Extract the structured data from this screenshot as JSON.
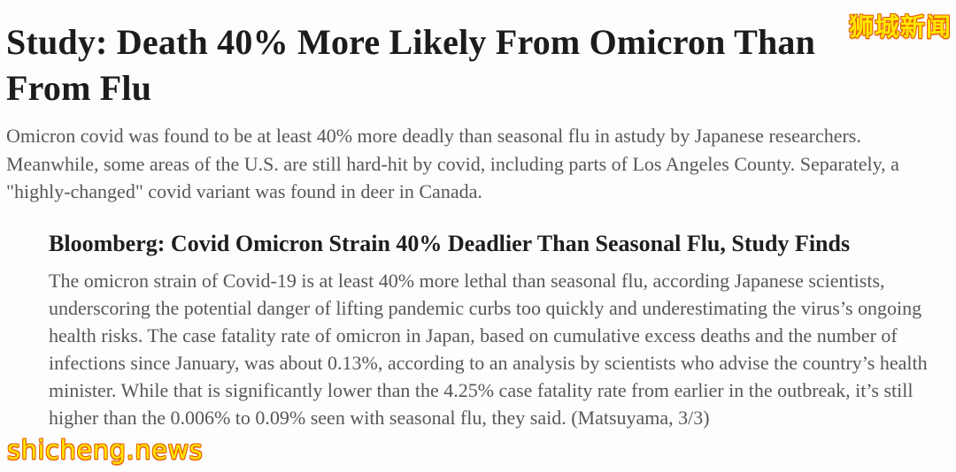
{
  "article": {
    "title": "Study: Death 40% More Likely From Omicron Than From Flu",
    "lead": "Omicron covid was found to be at least 40% more deadly than seasonal flu in astudy by Japanese researchers. Meanwhile, some areas of the U.S. are still hard-hit by covid, including parts of Los Angeles County. Separately, a \"highly-changed\" covid variant was found in deer in Canada.",
    "report": {
      "heading": "Bloomberg: Covid Omicron Strain 40% Deadlier Than Seasonal Flu, Study Finds",
      "body": "The omicron strain of Covid-19 is at least 40% more lethal than seasonal flu, according Japanese scientists, underscoring the potential danger of lifting pandemic curbs too quickly and underestimating the virus’s ongoing health risks. The case fatality rate of omicron in Japan, based on cumulative excess deaths and the number of infections since January, was about 0.13%, according to an analysis by scientists who advise the country’s health minister. While that is significantly lower than the 4.25% case fatality rate from earlier in the outbreak, it’s still higher than the 0.006% to 0.09% seen with seasonal flu, they said. (Matsuyama, 3/3)"
    }
  },
  "watermarks": {
    "top_right": "狮城新闻",
    "bottom_left": "shicheng.news"
  },
  "colors": {
    "headline": "#1c1c1c",
    "body_text": "#575757",
    "watermark_fill": "#ffe600",
    "watermark_outline": "#e65c00",
    "background": "#fdfdfd"
  }
}
